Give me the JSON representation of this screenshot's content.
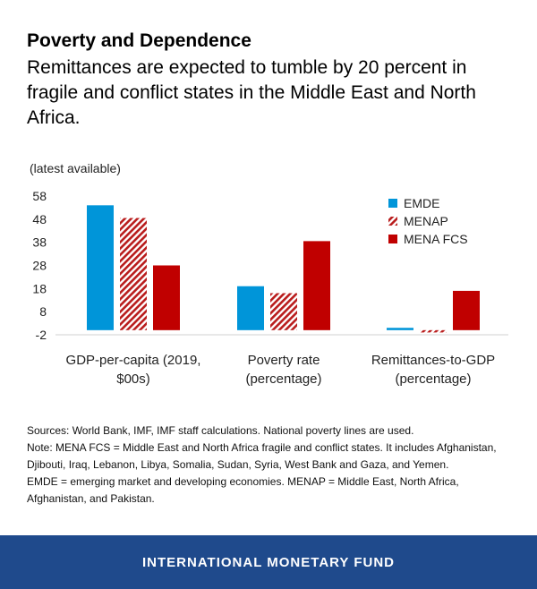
{
  "header": {
    "title": "Poverty and Dependence",
    "subtitle": "Remittances are expected to tumble by 20 percent in fragile and conflict states in the Middle East and North Africa."
  },
  "chart_data": {
    "type": "bar",
    "note": "(latest available)",
    "categories": [
      [
        "GDP-per-capita (2019,",
        "$00s)"
      ],
      [
        "Poverty rate",
        "(percentage)"
      ],
      [
        "Remittances-to-GDP",
        "(percentage)"
      ]
    ],
    "series": [
      {
        "name": "EMDE",
        "values": [
          54,
          19,
          1
        ],
        "color": "#0095d9",
        "pattern": "solid"
      },
      {
        "name": "MENAP",
        "values": [
          48.5,
          16,
          -1
        ],
        "color": "#b91c1c",
        "pattern": "hatched"
      },
      {
        "name": "MENA FCS",
        "values": [
          28,
          38.5,
          17
        ],
        "color": "#c00000",
        "pattern": "solid"
      }
    ],
    "yticks": [
      "58",
      "48",
      "38",
      "28",
      "18",
      "8",
      "-2"
    ],
    "ylim": [
      -2,
      58
    ],
    "legend": "top-right"
  },
  "notes": {
    "sources": "Sources: World Bank, IMF, IMF staff calculations. National poverty lines are used.",
    "note": "Note: MENA FCS = Middle East and North Africa fragile and conflict states. It includes Afghanistan, Djibouti, Iraq, Lebanon, Libya, Somalia, Sudan, Syria, West Bank and Gaza, and Yemen.",
    "abbrev": "EMDE = emerging market and developing economies. MENAP = Middle East, North Africa, Afghanistan, and Pakistan."
  },
  "footer": {
    "label": "INTERNATIONAL MONETARY FUND"
  }
}
